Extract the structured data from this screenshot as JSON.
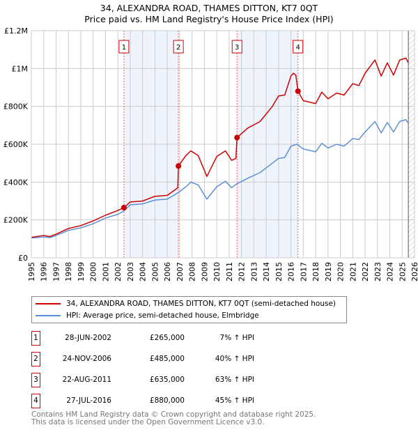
{
  "chart_data": {
    "type": "line",
    "title": "34, ALEXANDRA ROAD, THAMES DITTON, KT7 0QT",
    "subtitle": "Price paid vs. HM Land Registry's House Price Index (HPI)",
    "xlim": [
      1995,
      2026
    ],
    "ylim": [
      0,
      1200000
    ],
    "x_ticks": [
      "1995",
      "1996",
      "1997",
      "1998",
      "1999",
      "2000",
      "2001",
      "2002",
      "2003",
      "2004",
      "2005",
      "2006",
      "2007",
      "2008",
      "2009",
      "2010",
      "2011",
      "2012",
      "2013",
      "2014",
      "2015",
      "2016",
      "2017",
      "2018",
      "2019",
      "2020",
      "2021",
      "2022",
      "2023",
      "2024",
      "2025",
      "2026"
    ],
    "y_ticks": [
      {
        "v": 0,
        "label": "£0"
      },
      {
        "v": 200000,
        "label": "£200K"
      },
      {
        "v": 400000,
        "label": "£400K"
      },
      {
        "v": 600000,
        "label": "£600K"
      },
      {
        "v": 800000,
        "label": "£800K"
      },
      {
        "v": 1000000,
        "label": "£1M"
      },
      {
        "v": 1200000,
        "label": "£1.2M"
      }
    ],
    "grid": true,
    "series": [
      {
        "name": "34, ALEXANDRA ROAD, THAMES DITTON, KT7 0QT (semi-detached house)",
        "color": "#cc0000",
        "x": [
          1995,
          1996,
          1996.5,
          1997,
          1998,
          1999,
          2000,
          2001,
          2002,
          2002.49,
          2003,
          2004,
          2005,
          2006,
          2006.85,
          2006.9,
          2007.5,
          2007.9,
          2008.5,
          2009.2,
          2010,
          2010.7,
          2011.2,
          2011.55,
          2011.64,
          2012.5,
          2013.5,
          2014.5,
          2015,
          2015.5,
          2016,
          2016.2,
          2016.4,
          2016.57,
          2017,
          2018,
          2018.5,
          2019,
          2019.7,
          2020.3,
          2021,
          2021.5,
          2022,
          2022.8,
          2023.3,
          2023.8,
          2024.3,
          2024.8,
          2025.3,
          2025.5
        ],
        "y": [
          108000,
          118000,
          112000,
          125000,
          155000,
          170000,
          195000,
          225000,
          250000,
          265000,
          295000,
          300000,
          325000,
          330000,
          370000,
          485000,
          540000,
          565000,
          540000,
          430000,
          535000,
          565000,
          515000,
          525000,
          635000,
          685000,
          720000,
          800000,
          855000,
          860000,
          960000,
          975000,
          965000,
          880000,
          830000,
          815000,
          875000,
          840000,
          870000,
          860000,
          920000,
          910000,
          975000,
          1045000,
          960000,
          1030000,
          965000,
          1045000,
          1055000,
          1030000
        ]
      },
      {
        "name": "HPI: Average price, semi-detached house, Elmbridge",
        "color": "#5b8fd6",
        "x": [
          1995,
          1996,
          1996.5,
          1997,
          1998,
          1999,
          2000,
          2001,
          2002,
          2002.5,
          2003,
          2004,
          2005,
          2006,
          2006.9,
          2007.5,
          2007.9,
          2008.5,
          2009.2,
          2010,
          2010.7,
          2011.2,
          2011.6,
          2012.5,
          2013.5,
          2014.5,
          2015,
          2015.5,
          2016,
          2016.5,
          2017,
          2018,
          2018.5,
          2019,
          2019.7,
          2020.3,
          2021,
          2021.5,
          2022,
          2022.8,
          2023.3,
          2023.8,
          2024.3,
          2024.8,
          2025.3,
          2025.5
        ],
        "y": [
          105000,
          110000,
          107000,
          118000,
          145000,
          158000,
          180000,
          210000,
          230000,
          248000,
          280000,
          285000,
          305000,
          310000,
          345000,
          375000,
          400000,
          385000,
          310000,
          375000,
          405000,
          370000,
          390000,
          420000,
          450000,
          500000,
          525000,
          530000,
          590000,
          600000,
          575000,
          560000,
          605000,
          580000,
          600000,
          590000,
          630000,
          625000,
          665000,
          720000,
          660000,
          715000,
          665000,
          720000,
          730000,
          710000
        ]
      }
    ],
    "sales": [
      {
        "n": "1",
        "x": 2002.49,
        "y": 265000,
        "date": "28-JUN-2002",
        "price": "£265,000",
        "hpi": "7% ↑ HPI"
      },
      {
        "n": "2",
        "x": 2006.9,
        "y": 485000,
        "date": "24-NOV-2006",
        "price": "£485,000",
        "hpi": "40% ↑ HPI"
      },
      {
        "n": "3",
        "x": 2011.64,
        "y": 635000,
        "date": "22-AUG-2011",
        "price": "£635,000",
        "hpi": "63% ↑ HPI"
      },
      {
        "n": "4",
        "x": 2016.57,
        "y": 880000,
        "date": "27-JUL-2016",
        "price": "£880,000",
        "hpi": "45% ↑ HPI"
      }
    ],
    "shaded_ranges": [
      [
        2002.49,
        2006.9
      ],
      [
        2011.64,
        2016.57
      ]
    ],
    "hatched_from": 2025.5
  },
  "footer": {
    "line1": "Contains HM Land Registry data © Crown copyright and database right 2025.",
    "line2": "This data is licensed under the Open Government Licence v3.0."
  }
}
